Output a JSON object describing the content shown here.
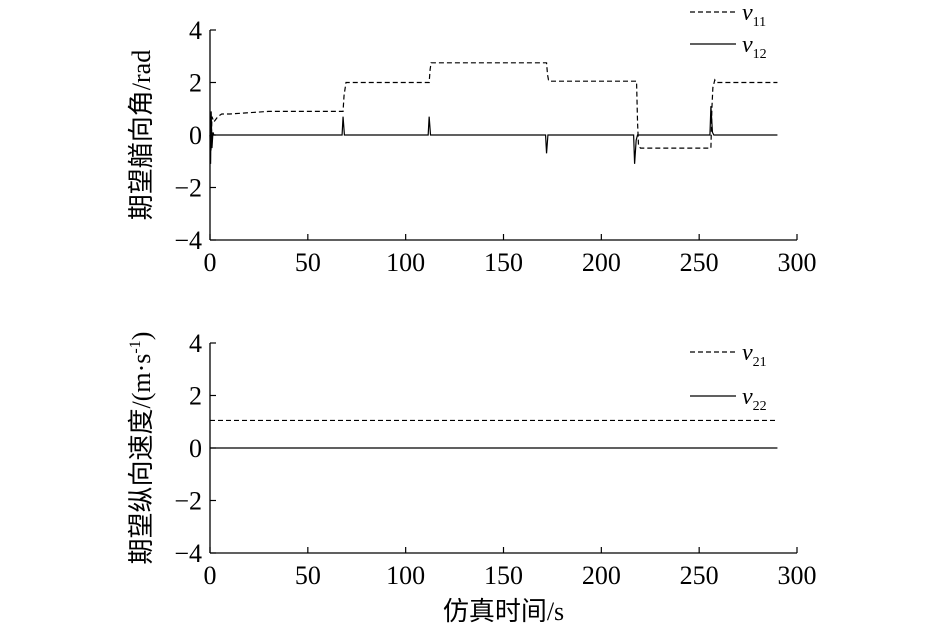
{
  "chart_data": [
    {
      "type": "line",
      "ylabel": "期望艏向角/rad",
      "xlabel": "",
      "xlim": [
        0,
        300
      ],
      "ylim": [
        -4,
        4
      ],
      "xticks": [
        "0",
        "50",
        "100",
        "150",
        "200",
        "250",
        "300"
      ],
      "yticks": [
        "4",
        "2",
        "0",
        "−2",
        "−4"
      ],
      "grid": false,
      "legend_position": "top-right",
      "series": [
        {
          "name": "v",
          "subscript": "11",
          "style": "dashed",
          "x": [
            0,
            0.5,
            1,
            2,
            4,
            6,
            10,
            20,
            30,
            40,
            50,
            60,
            66,
            67,
            68,
            68.5,
            69.5,
            70,
            75,
            80,
            90,
            100,
            110,
            111,
            112,
            112.5,
            113,
            113.5,
            114,
            120,
            130,
            140,
            150,
            160,
            170,
            171,
            172,
            172.5,
            173,
            173.5,
            174,
            180,
            190,
            200,
            210,
            215,
            216,
            217,
            218,
            218.5,
            219,
            220,
            230,
            240,
            250,
            254,
            255,
            256,
            256.5,
            257,
            258,
            259,
            260,
            270,
            280,
            290
          ],
          "y": [
            0,
            -0.6,
            0.7,
            0.5,
            0.7,
            0.8,
            0.8,
            0.85,
            0.9,
            0.9,
            0.9,
            0.9,
            0.9,
            0.9,
            0.9,
            1.5,
            2.0,
            2.0,
            2.0,
            2.0,
            2.0,
            2.0,
            2.0,
            2.0,
            2.0,
            2.5,
            2.75,
            2.75,
            2.75,
            2.75,
            2.75,
            2.75,
            2.75,
            2.75,
            2.75,
            2.75,
            2.75,
            2.3,
            2.1,
            2.1,
            2.05,
            2.05,
            2.05,
            2.05,
            2.05,
            2.05,
            2.05,
            2.05,
            2.05,
            0.5,
            -0.4,
            -0.5,
            -0.5,
            -0.5,
            -0.5,
            -0.5,
            -0.5,
            -0.5,
            1.0,
            1.8,
            2.1,
            2.0,
            2.0,
            2.0,
            2.0,
            2.0
          ]
        },
        {
          "name": "v",
          "subscript": "12",
          "style": "solid",
          "x": [
            0,
            0.3,
            0.6,
            1,
            1.5,
            2,
            67,
            67.5,
            68,
            68.7,
            69.5,
            111,
            111.5,
            112,
            112.7,
            113.5,
            171,
            171.5,
            172,
            172.7,
            173.5,
            216,
            216.5,
            217,
            217.8,
            218.5,
            255,
            255.5,
            256,
            256.8,
            257.5,
            290
          ],
          "y": [
            0,
            -1.1,
            0.9,
            -0.5,
            0.1,
            0,
            0,
            0,
            0.7,
            0,
            0,
            0,
            0,
            0.7,
            0,
            0,
            0,
            0,
            -0.7,
            0,
            0,
            0,
            0,
            -1.1,
            -0.2,
            0,
            0,
            0,
            1.1,
            0.1,
            0,
            0
          ]
        }
      ]
    },
    {
      "type": "line",
      "ylabel": "期望纵向速度/(m·s",
      "ylabel_sup": "-1",
      "ylabel_tail": ")",
      "xlabel": "仿真时间/s",
      "xlim": [
        0,
        300
      ],
      "ylim": [
        -4,
        4
      ],
      "xticks": [
        "0",
        "50",
        "100",
        "150",
        "200",
        "250",
        "300"
      ],
      "yticks": [
        "4",
        "2",
        "0",
        "−2",
        "−4"
      ],
      "grid": false,
      "legend_position": "top-right",
      "series": [
        {
          "name": "v",
          "subscript": "21",
          "style": "dashed",
          "x": [
            0,
            290
          ],
          "y": [
            1.05,
            1.05
          ]
        },
        {
          "name": "v",
          "subscript": "22",
          "style": "solid",
          "x": [
            0,
            290
          ],
          "y": [
            0,
            0
          ]
        }
      ]
    }
  ]
}
